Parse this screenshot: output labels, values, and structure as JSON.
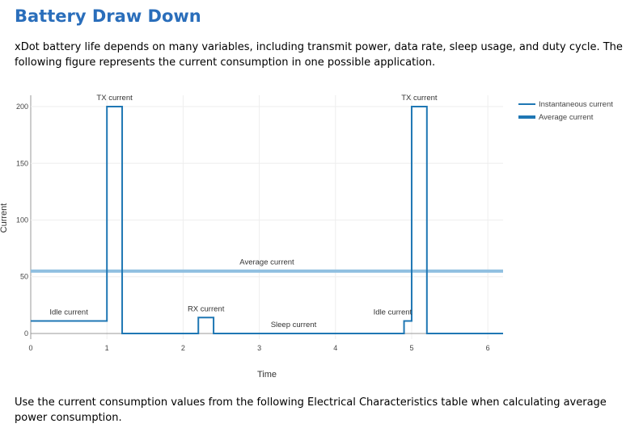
{
  "page": {
    "title": "Battery Draw Down",
    "intro": "xDot battery life depends on many variables, including transmit power, data rate, sleep usage, and duty cycle. The following figure represents the current consumption in one possible application.",
    "footer": "Use the current consumption values from the following Electrical Characteristics table when calculating average power consumption."
  },
  "chart_data": {
    "type": "line",
    "xlabel": "Time",
    "ylabel": "Current",
    "xlim": [
      0,
      6.2
    ],
    "ylim": [
      -5,
      210
    ],
    "xticks": [
      0,
      1,
      2,
      3,
      4,
      5,
      6
    ],
    "yticks": [
      0,
      50,
      100,
      150,
      200
    ],
    "grid": true,
    "legend_position": "top-right",
    "series": [
      {
        "name": "Instantaneous current",
        "color": "#1f77b4",
        "x": [
          0,
          1.0,
          1.0,
          1.2,
          1.2,
          2.2,
          2.2,
          2.4,
          2.4,
          4.9,
          4.9,
          5.0,
          5.0,
          5.2,
          5.2,
          6.2
        ],
        "y": [
          11,
          11,
          200,
          200,
          0,
          0,
          14,
          14,
          0,
          0,
          11,
          11,
          200,
          200,
          0,
          0
        ]
      },
      {
        "name": "Average current",
        "color": "#8fbfe0",
        "x": [
          0,
          6.2
        ],
        "y": [
          55,
          55
        ]
      }
    ],
    "annotations": [
      {
        "text": "TX current",
        "x": 1.1,
        "y": 200
      },
      {
        "text": "TX current",
        "x": 5.1,
        "y": 200
      },
      {
        "text": "Idle current",
        "x": 0.5,
        "y": 11
      },
      {
        "text": "Idle current",
        "x": 4.75,
        "y": 11
      },
      {
        "text": "RX current",
        "x": 2.3,
        "y": 14
      },
      {
        "text": "Sleep current",
        "x": 3.45,
        "y": 0
      },
      {
        "text": "Average current",
        "x": 3.1,
        "y": 55
      }
    ]
  }
}
